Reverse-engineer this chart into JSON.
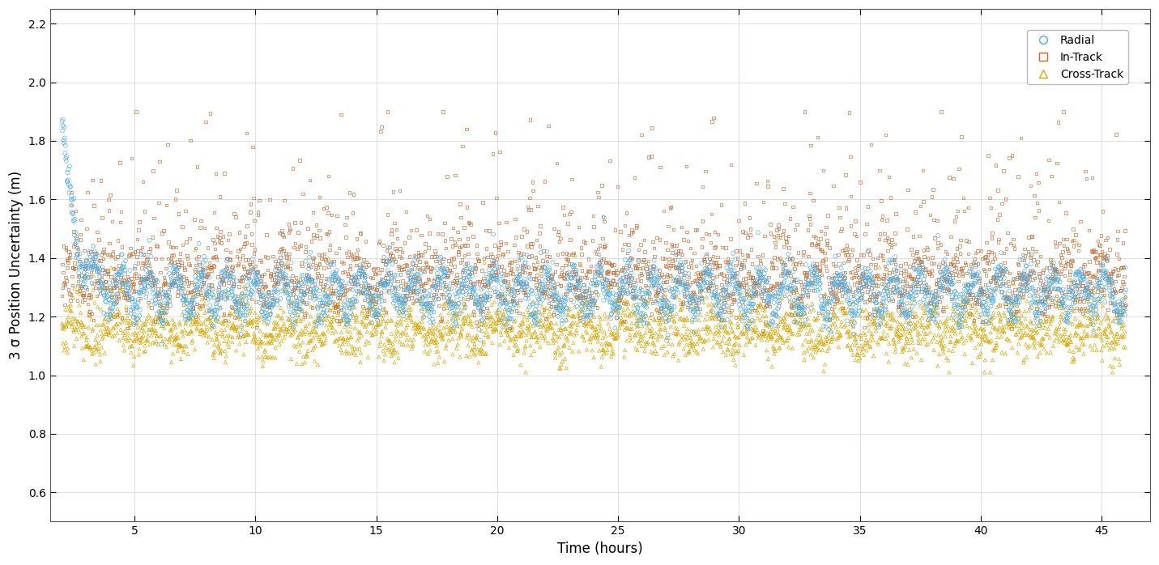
{
  "title": "",
  "xlabel": "Time (hours)",
  "ylabel": "3 σ Position Uncertainty (m)",
  "xlim": [
    1.5,
    47
  ],
  "ylim": [
    0.5,
    2.25
  ],
  "yticks": [
    0.6,
    0.8,
    1.0,
    1.2,
    1.4,
    1.6,
    1.8,
    2.0,
    2.2
  ],
  "xticks": [
    5,
    10,
    15,
    20,
    25,
    30,
    35,
    40,
    45
  ],
  "legend_labels": [
    "Radial",
    "In-Track",
    "Cross-Track"
  ],
  "radial_color": "#4DADE2",
  "intrack_color": "#C8672A",
  "crosstrack_color": "#D4A800",
  "n_points": 2800,
  "seed": 42,
  "background": "#FFFFFF",
  "grid_color": "#DDDDDD"
}
